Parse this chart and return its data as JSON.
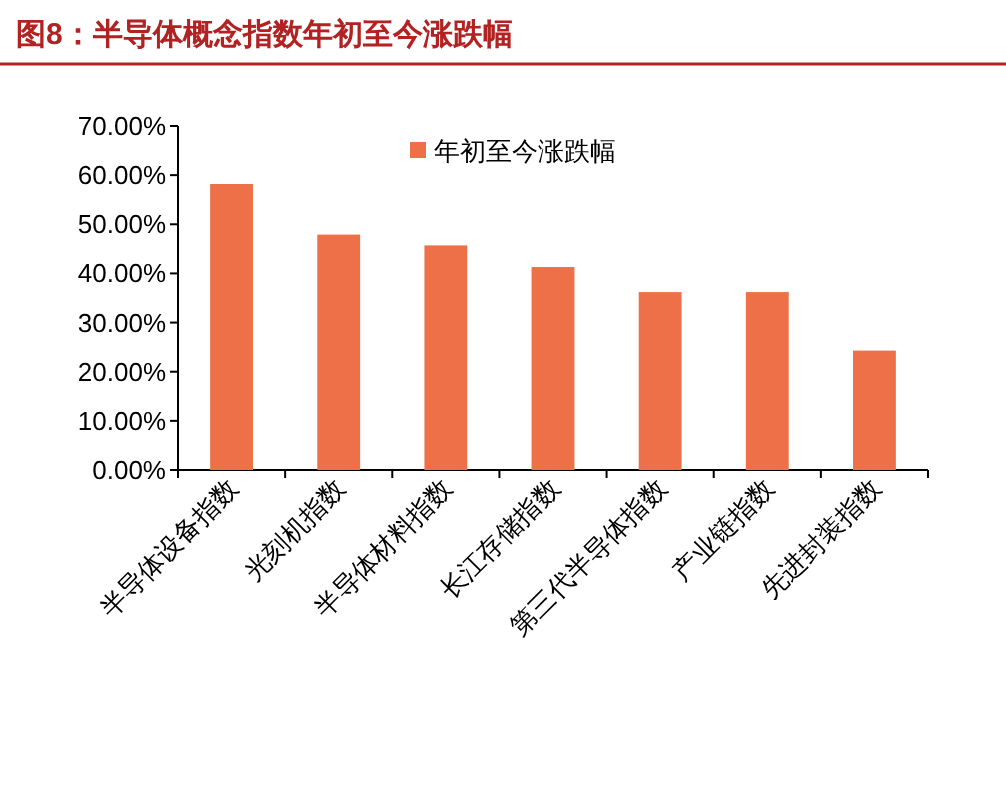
{
  "chart_data": {
    "type": "bar",
    "title": "图8：半导体概念指数年初至今涨跌幅",
    "categories": [
      "半导体设备指数",
      "光刻机指数",
      "半导体材料指数",
      "长江存储指数",
      "第三代半导体指数",
      "产业链指数",
      "先进封装指数"
    ],
    "series": [
      {
        "name": "年初至今涨跌幅",
        "color": "#ed7048",
        "values": [
          58.2,
          47.9,
          45.7,
          41.3,
          36.2,
          36.2,
          24.3
        ]
      }
    ],
    "ylim": [
      0,
      70
    ],
    "yticks": [
      {
        "value": 0,
        "label": "0.00%"
      },
      {
        "value": 10,
        "label": "10.00%"
      },
      {
        "value": 20,
        "label": "20.00%"
      },
      {
        "value": 30,
        "label": "30.00%"
      },
      {
        "value": 40,
        "label": "40.00%"
      },
      {
        "value": 50,
        "label": "50.00%"
      },
      {
        "value": 60,
        "label": "60.00%"
      },
      {
        "value": 70,
        "label": "70.00%"
      }
    ],
    "grid": false,
    "legend": "top"
  }
}
